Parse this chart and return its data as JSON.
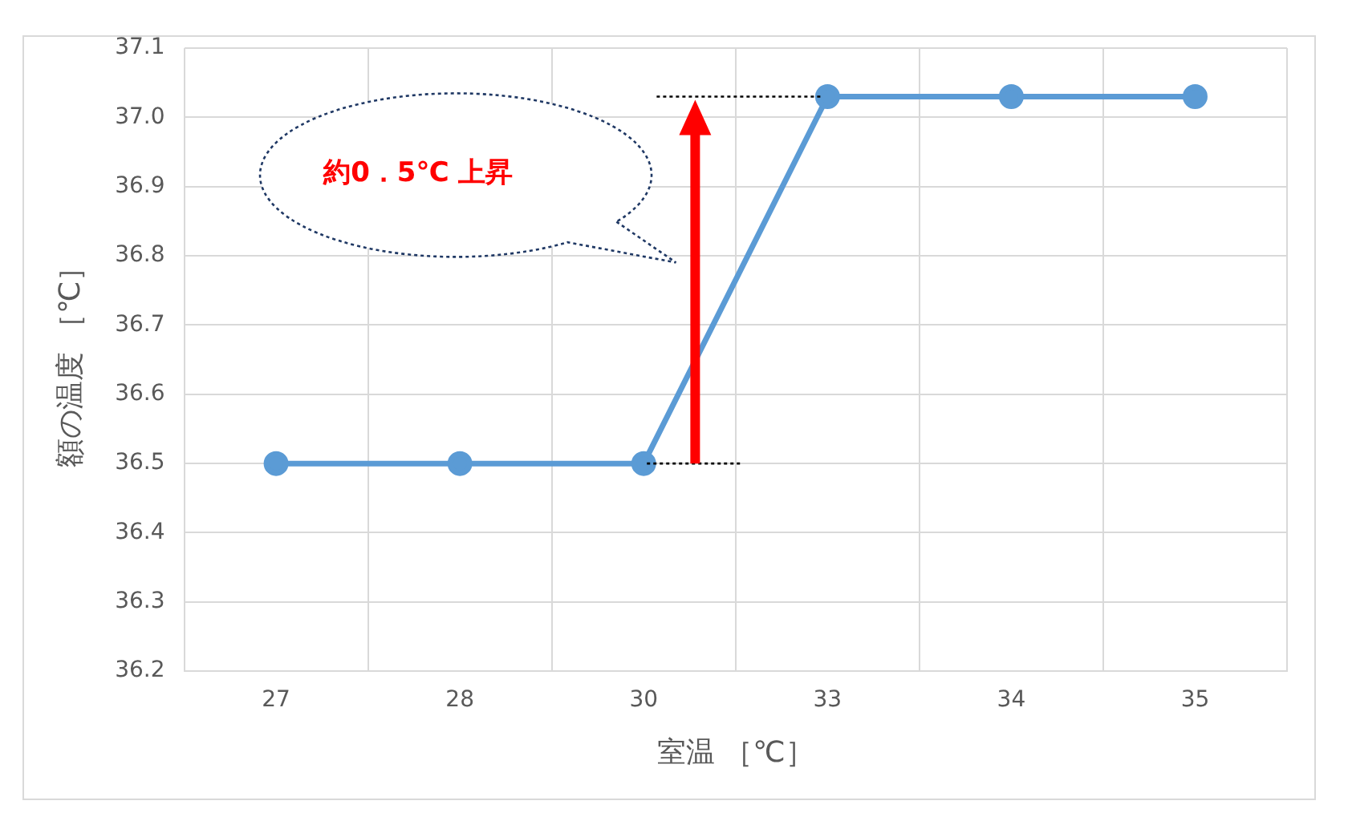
{
  "chart_data": {
    "type": "line",
    "xlabel": "室温 ［℃］",
    "ylabel": "額の温度 ［℃］",
    "categories": [
      "27",
      "28",
      "30",
      "33",
      "34",
      "35"
    ],
    "series": [
      {
        "color": "#5b9bd5",
        "values": [
          36.5,
          36.5,
          36.5,
          37.03,
          37.03,
          37.03
        ]
      }
    ],
    "ylim": [
      36.2,
      37.1
    ],
    "yticks": [
      36.2,
      36.3,
      36.4,
      36.5,
      36.6,
      36.7,
      36.8,
      36.9,
      {
        "value": 37,
        "label": "37.0"
      },
      37.1
    ],
    "grid": true,
    "legend": false,
    "marker": "circle",
    "line_style": "solid",
    "annotations": [
      "約0．5℃ 上昇"
    ]
  }
}
